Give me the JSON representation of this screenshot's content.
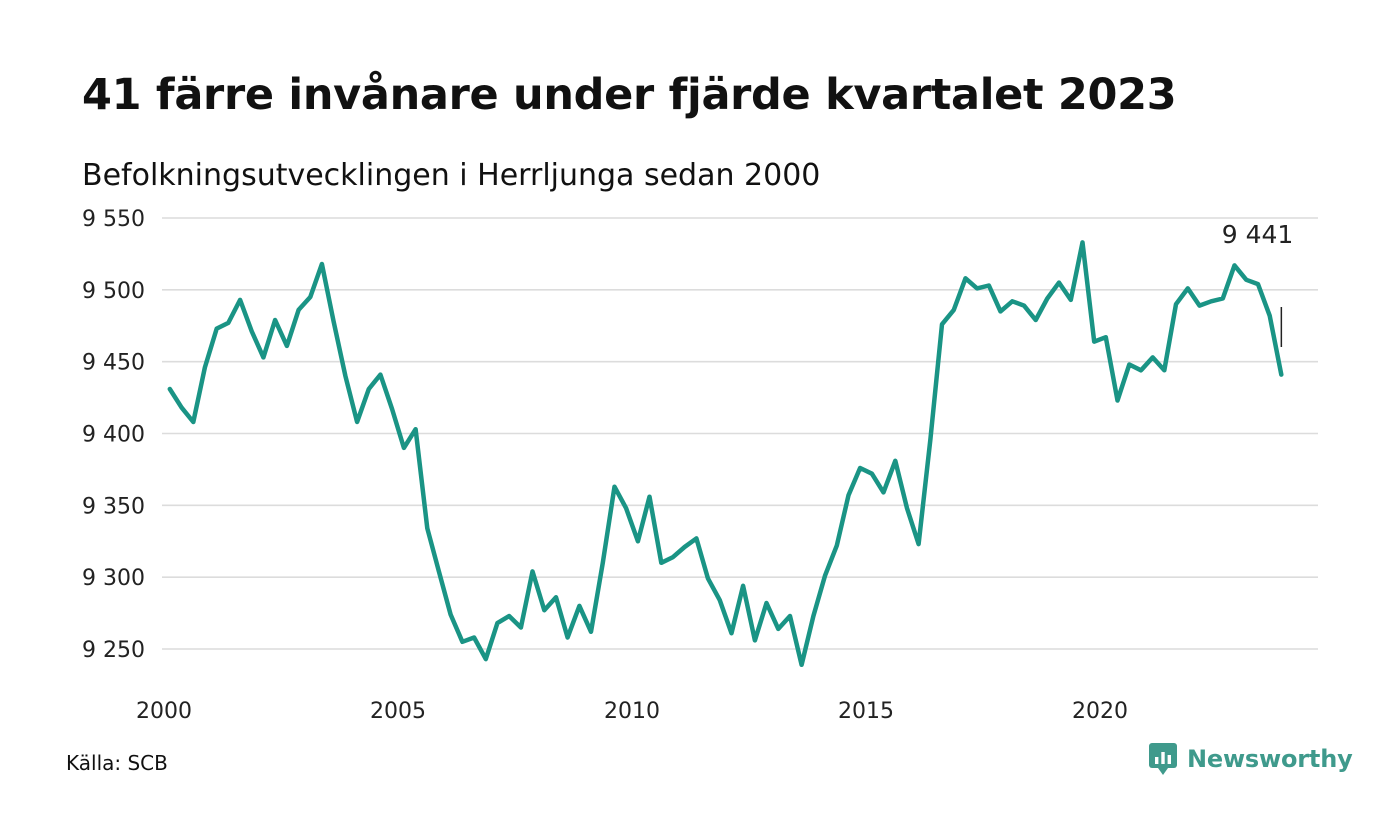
{
  "title": "41 färre invånare under fjärde kvartalet 2023",
  "subtitle": "Befolkningsutvecklingen i Herrljunga sedan 2000",
  "source": "Källa: SCB",
  "brand": {
    "name": "Newsworthy",
    "icon": "newsworthy-logo-icon",
    "color": "#3f9a8c"
  },
  "chart_data": {
    "type": "line",
    "title": "41 färre invånare under fjärde kvartalet 2023",
    "subtitle": "Befolkningsutvecklingen i Herrljunga sedan 2000",
    "xlabel": "",
    "ylabel": "",
    "x_ticks": [
      "2000",
      "2005",
      "2010",
      "2015",
      "2020"
    ],
    "y_ticks": [
      9250,
      9300,
      9350,
      9400,
      9450,
      9500,
      9550
    ],
    "y_tick_labels": [
      "9 250",
      "9 300",
      "9 350",
      "9 400",
      "9 450",
      "9 500",
      "9 550"
    ],
    "xlim": [
      2000.0,
      2024.5
    ],
    "ylim": [
      9240,
      9550
    ],
    "grid": "horizontal",
    "line_color": "#1a9485",
    "annotation": {
      "text": "9 441",
      "x": "2023 Q4",
      "value": 9441
    },
    "x": [
      "2000 Q1",
      "2000 Q2",
      "2000 Q3",
      "2000 Q4",
      "2001 Q1",
      "2001 Q2",
      "2001 Q3",
      "2001 Q4",
      "2002 Q1",
      "2002 Q2",
      "2002 Q3",
      "2002 Q4",
      "2003 Q1",
      "2003 Q2",
      "2003 Q3",
      "2003 Q4",
      "2004 Q1",
      "2004 Q2",
      "2004 Q3",
      "2004 Q4",
      "2005 Q1",
      "2005 Q2",
      "2005 Q3",
      "2005 Q4",
      "2006 Q1",
      "2006 Q2",
      "2006 Q3",
      "2006 Q4",
      "2007 Q1",
      "2007 Q2",
      "2007 Q3",
      "2007 Q4",
      "2008 Q1",
      "2008 Q2",
      "2008 Q3",
      "2008 Q4",
      "2009 Q1",
      "2009 Q2",
      "2009 Q3",
      "2009 Q4",
      "2010 Q1",
      "2010 Q2",
      "2010 Q3",
      "2010 Q4",
      "2011 Q1",
      "2011 Q2",
      "2011 Q3",
      "2011 Q4",
      "2012 Q1",
      "2012 Q2",
      "2012 Q3",
      "2012 Q4",
      "2013 Q1",
      "2013 Q2",
      "2013 Q3",
      "2013 Q4",
      "2014 Q1",
      "2014 Q2",
      "2014 Q3",
      "2014 Q4",
      "2015 Q1",
      "2015 Q2",
      "2015 Q3",
      "2015 Q4",
      "2016 Q1",
      "2016 Q2",
      "2016 Q3",
      "2016 Q4",
      "2017 Q1",
      "2017 Q2",
      "2017 Q3",
      "2017 Q4",
      "2018 Q1",
      "2018 Q2",
      "2018 Q3",
      "2018 Q4",
      "2019 Q1",
      "2019 Q2",
      "2019 Q3",
      "2019 Q4",
      "2020 Q1",
      "2020 Q2",
      "2020 Q3",
      "2020 Q4",
      "2021 Q1",
      "2021 Q2",
      "2021 Q3",
      "2021 Q4",
      "2022 Q1",
      "2022 Q2",
      "2022 Q3",
      "2022 Q4",
      "2023 Q1",
      "2023 Q2",
      "2023 Q3",
      "2023 Q4"
    ],
    "series": [
      {
        "values": [
          9431,
          9418,
          9408,
          9446,
          9473,
          9477,
          9493,
          9471,
          9453,
          9479,
          9461,
          9486,
          9495,
          9518,
          9478,
          9440,
          9408,
          9431,
          9441,
          9417,
          9390,
          9403,
          9334,
          9304,
          9274,
          9255,
          9258,
          9243,
          9268,
          9273,
          9265,
          9304,
          9277,
          9286,
          9258,
          9280,
          9262,
          9310,
          9363,
          9348,
          9325,
          9356,
          9310,
          9314,
          9321,
          9327,
          9299,
          9284,
          9261,
          9294,
          9256,
          9282,
          9264,
          9273,
          9239,
          9273,
          9301,
          9322,
          9357,
          9376,
          9372,
          9359,
          9381,
          9348,
          9323,
          9396,
          9476,
          9486,
          9508,
          9501,
          9503,
          9485,
          9492,
          9489,
          9479,
          9494,
          9505,
          9493,
          9533,
          9464,
          9467,
          9423,
          9448,
          9444,
          9453,
          9444,
          9490,
          9501,
          9489,
          9492,
          9494,
          9517,
          9507,
          9504,
          9482,
          9441
        ]
      }
    ]
  }
}
